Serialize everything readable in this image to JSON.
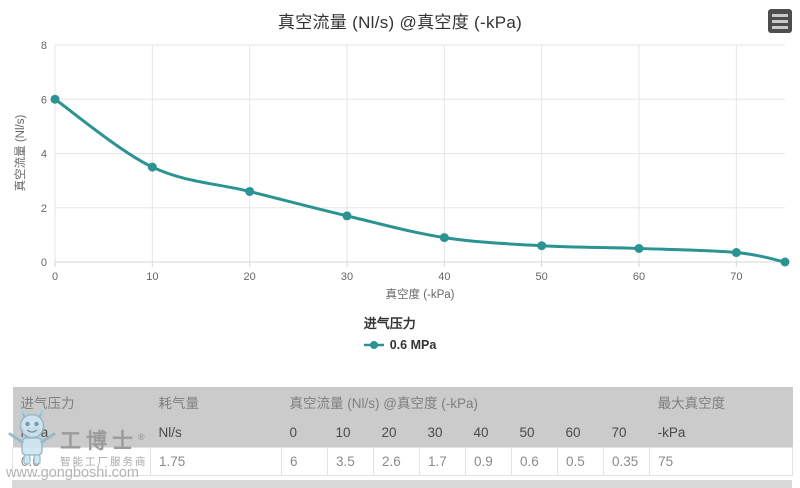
{
  "chart_data": {
    "type": "line",
    "title": "真空流量 (Nl/s) @真空度 (-kPa)",
    "xlabel": "真空度 (-kPa)",
    "ylabel": "真空流量 (Nl/s)",
    "legend_title": "进气压力",
    "legend_position": "bottom",
    "grid": true,
    "xlim": [
      0,
      75
    ],
    "ylim": [
      0,
      8
    ],
    "xticks": [
      0,
      10,
      20,
      30,
      40,
      50,
      60,
      70
    ],
    "yticks": [
      0,
      2,
      4,
      6,
      8
    ],
    "series": [
      {
        "name": "0.6 MPa",
        "x": [
          0,
          10,
          20,
          30,
          40,
          50,
          60,
          70,
          75
        ],
        "values": [
          6,
          3.5,
          2.6,
          1.7,
          0.9,
          0.6,
          0.5,
          0.35,
          0
        ]
      }
    ],
    "line_color": "#2b9392",
    "grid_color": "#e6e6e6",
    "axis_line_color": "#d6d6d6",
    "tick_label_color": "#666666"
  },
  "table": {
    "groups": {
      "pressure": {
        "title": "进气压力",
        "unit": "MPa"
      },
      "consumption": {
        "title": "耗气量",
        "unit": "Nl/s"
      },
      "flow": {
        "title": "真空流量 (Nl/s) @真空度 (-kPa)",
        "cols": [
          "0",
          "10",
          "20",
          "30",
          "40",
          "50",
          "60",
          "70"
        ]
      },
      "max_vacuum": {
        "title": "最大真空度",
        "unit": "-kPa"
      }
    },
    "row": {
      "pressure": "0.6",
      "consumption": "1.75",
      "flows": [
        "6",
        "3.5",
        "2.6",
        "1.7",
        "0.9",
        "0.6",
        "0.5",
        "0.35"
      ],
      "max_vacuum": "75"
    }
  },
  "watermark": {
    "brand": "工博士",
    "registered": "®",
    "tagline": "智能工厂服务商",
    "url": "www.gongboshi.com"
  }
}
